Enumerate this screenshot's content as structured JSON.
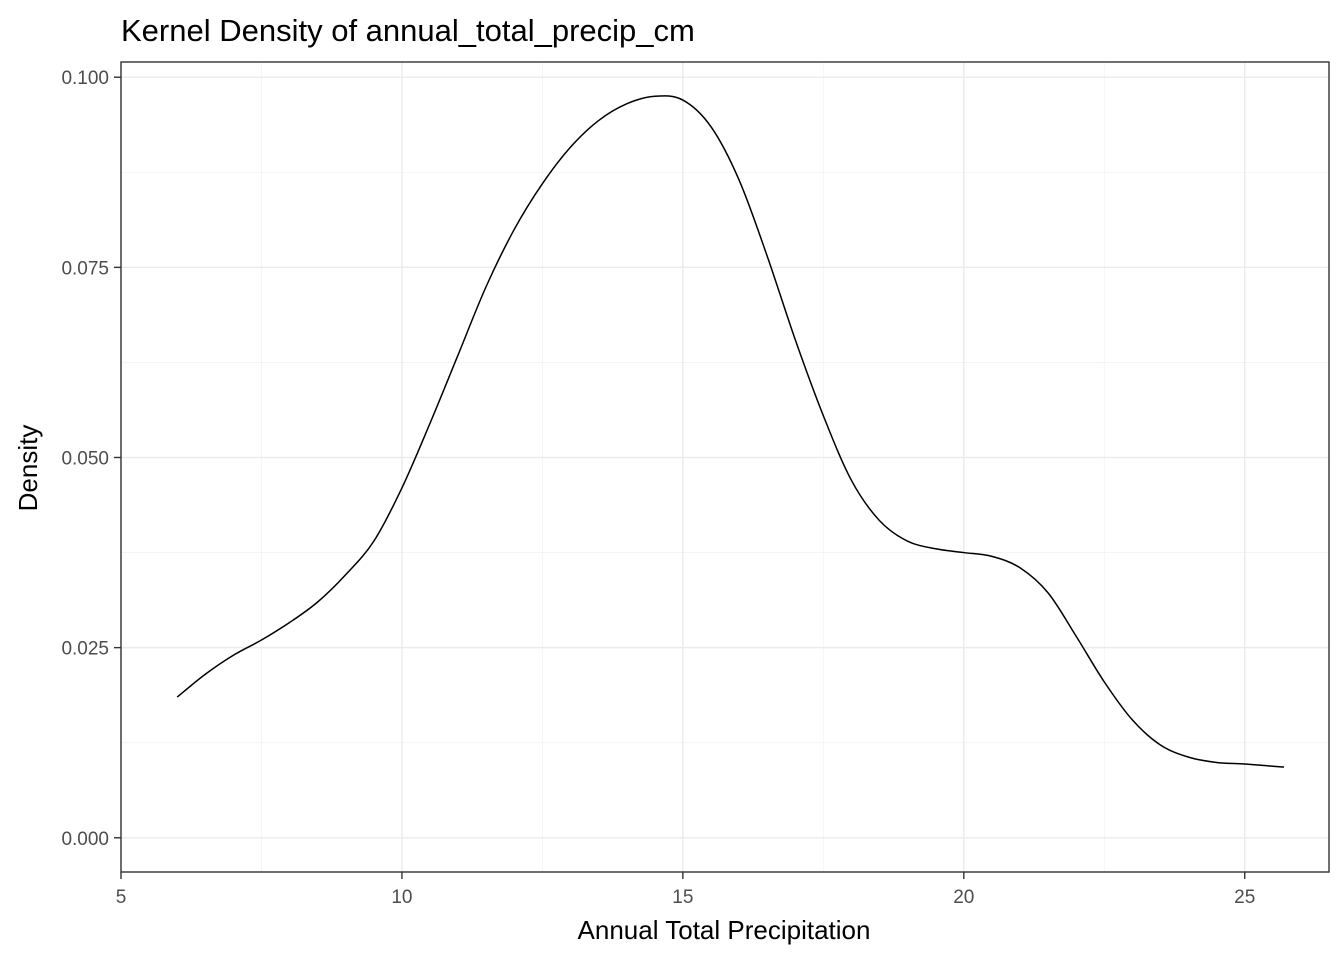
{
  "chart_data": {
    "type": "line",
    "title": "Kernel Density of annual_total_precip_cm",
    "xlabel": "Annual Total Precipitation",
    "ylabel": "Density",
    "xlim": [
      5,
      26.5
    ],
    "ylim": [
      -0.0045,
      0.102
    ],
    "x_ticks": [
      5,
      10,
      15,
      20,
      25
    ],
    "y_ticks": [
      0.0,
      0.025,
      0.05,
      0.075,
      0.1
    ],
    "x_tick_labels": [
      "5",
      "10",
      "15",
      "20",
      "25"
    ],
    "y_tick_labels": [
      "0.000",
      "0.025",
      "0.050",
      "0.075",
      "0.100"
    ],
    "grid": true,
    "legend": "none",
    "series": [
      {
        "color": "#000000",
        "x": [
          6.0,
          6.5,
          7.0,
          7.5,
          8.0,
          8.5,
          9.0,
          9.5,
          10.0,
          10.5,
          11.0,
          11.5,
          12.0,
          12.5,
          13.0,
          13.5,
          14.0,
          14.5,
          15.0,
          15.5,
          16.0,
          16.5,
          17.0,
          17.5,
          18.0,
          18.5,
          19.0,
          19.5,
          20.0,
          20.5,
          21.0,
          21.5,
          22.0,
          22.5,
          23.0,
          23.5,
          24.0,
          24.5,
          25.0,
          25.5,
          25.7
        ],
        "y": [
          0.0185,
          0.0215,
          0.024,
          0.026,
          0.0283,
          0.031,
          0.0346,
          0.039,
          0.046,
          0.0545,
          0.0635,
          0.0725,
          0.08,
          0.086,
          0.0908,
          0.0943,
          0.0965,
          0.0975,
          0.097,
          0.0935,
          0.0865,
          0.0765,
          0.0655,
          0.0555,
          0.047,
          0.0417,
          0.039,
          0.038,
          0.0375,
          0.037,
          0.0355,
          0.0322,
          0.0265,
          0.0205,
          0.0155,
          0.0122,
          0.0106,
          0.0099,
          0.0097,
          0.0094,
          0.0093
        ]
      }
    ]
  }
}
